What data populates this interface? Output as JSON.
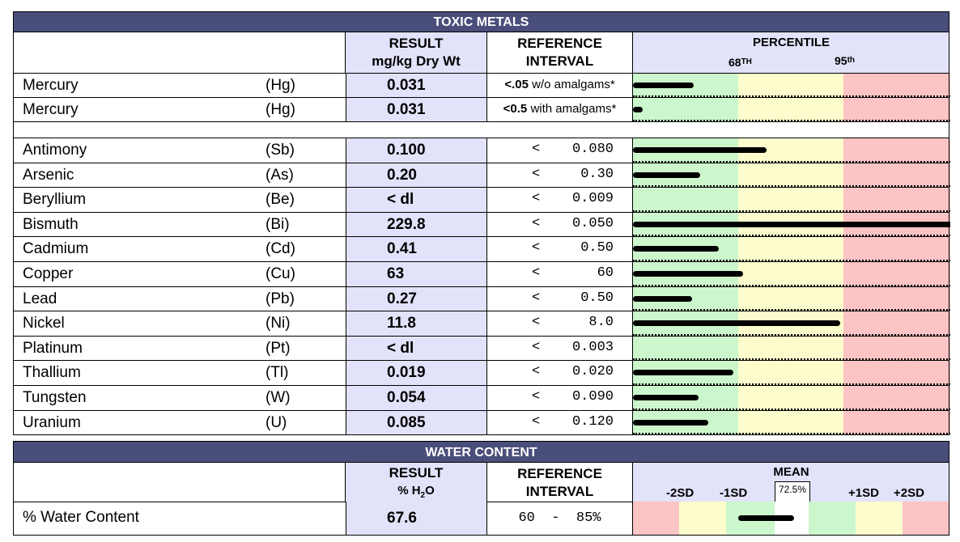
{
  "toxic": {
    "title": "TOXIC METALS",
    "result_header": [
      "RESULT",
      "mg/kg Dry Wt"
    ],
    "reference_header": [
      "REFERENCE",
      "INTERVAL"
    ],
    "percentile_header": "PERCENTILE",
    "p68": "68",
    "p68_sup": "TH",
    "p95": "95",
    "p95_sup": "th",
    "mercury_rows": [
      {
        "name": "Mercury",
        "symbol": "(Hg)",
        "result": "0.031",
        "ref_bold": "<.05",
        "ref_text": " w/o amalgams*",
        "percentile_fraction": 0.19
      },
      {
        "name": "Mercury",
        "symbol": "(Hg)",
        "result": "0.031",
        "ref_bold": "<0.5",
        "ref_text": " with amalgams*",
        "percentile_fraction": 0.03
      }
    ],
    "rows": [
      {
        "name": "Antimony",
        "symbol": "(Sb)",
        "result": "0.100",
        "lt": "<",
        "ref": "0.080",
        "percentile_fraction": 0.42
      },
      {
        "name": "Arsenic",
        "symbol": "(As)",
        "result": "0.20",
        "lt": "<",
        "ref": "0.30",
        "percentile_fraction": 0.21
      },
      {
        "name": "Beryllium",
        "symbol": "(Be)",
        "result": "< dl",
        "lt": "<",
        "ref": "0.009",
        "percentile_fraction": 0
      },
      {
        "name": "Bismuth",
        "symbol": "(Bi)",
        "result": "229.8",
        "lt": "<",
        "ref": "0.050",
        "percentile_fraction": 1.0
      },
      {
        "name": "Cadmium",
        "symbol": "(Cd)",
        "result": "0.41",
        "lt": "<",
        "ref": "0.50",
        "percentile_fraction": 0.27
      },
      {
        "name": "Copper",
        "symbol": "(Cu)",
        "result": "63",
        "lt": "<",
        "ref": "60",
        "percentile_fraction": 0.345
      },
      {
        "name": "Lead",
        "symbol": "(Pb)",
        "result": "0.27",
        "lt": "<",
        "ref": "0.50",
        "percentile_fraction": 0.185
      },
      {
        "name": "Nickel",
        "symbol": "(Ni)",
        "result": "11.8",
        "lt": "<",
        "ref": "8.0",
        "percentile_fraction": 0.65
      },
      {
        "name": "Platinum",
        "symbol": "(Pt)",
        "result": "< dl",
        "lt": "<",
        "ref": "0.003",
        "percentile_fraction": 0
      },
      {
        "name": "Thallium",
        "symbol": "(Tl)",
        "result": "0.019",
        "lt": "<",
        "ref": "0.020",
        "percentile_fraction": 0.315
      },
      {
        "name": "Tungsten",
        "symbol": "(W)",
        "result": "0.054",
        "lt": "<",
        "ref": "0.090",
        "percentile_fraction": 0.205
      },
      {
        "name": "Uranium",
        "symbol": "(U)",
        "result": "0.085",
        "lt": "<",
        "ref": "0.120",
        "percentile_fraction": 0.235
      }
    ]
  },
  "water": {
    "title": "WATER CONTENT",
    "result_header": [
      "RESULT",
      "% H",
      "2",
      "O"
    ],
    "reference_header": [
      "REFERENCE",
      "INTERVAL"
    ],
    "mean_label": "MEAN",
    "mean_value": "72.5%",
    "sd_labels": [
      "-2SD",
      "-1SD",
      "+1SD",
      "+2SD"
    ],
    "row": {
      "name": "% Water Content",
      "result": "67.6",
      "ref": "60  -  85%"
    }
  },
  "colors": {
    "title_bg": "#4a4e7a",
    "lavender": "#e2e2fa",
    "green_zone": "#ccf7cc",
    "yellow_zone": "#fcfccc",
    "red_zone": "#fcc4c4"
  }
}
